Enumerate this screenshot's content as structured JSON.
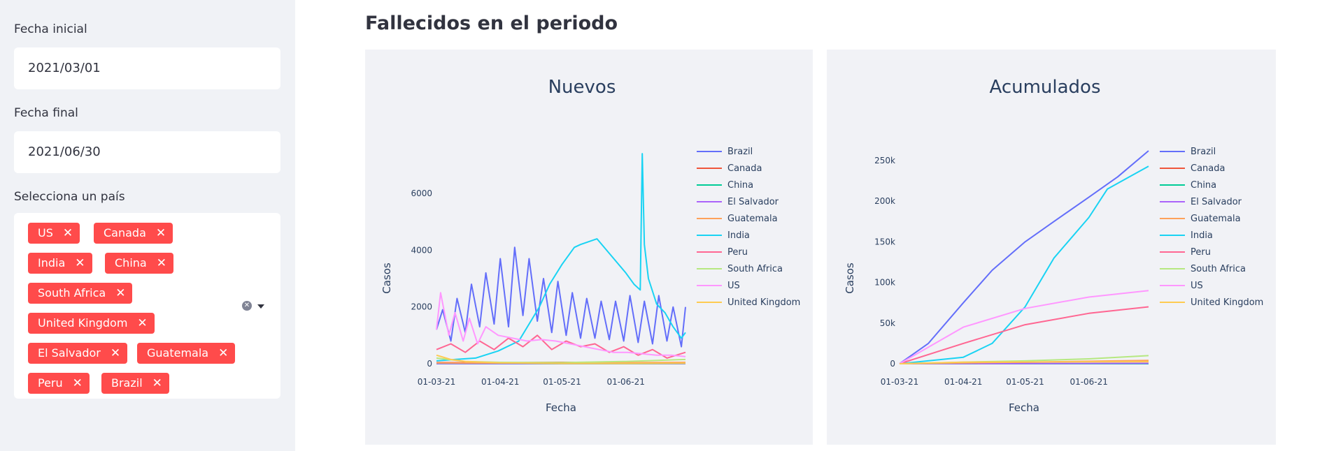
{
  "sidebar": {
    "start_label": "Fecha inicial",
    "start_value": "2021/03/01",
    "end_label": "Fecha final",
    "end_value": "2021/06/30",
    "country_label": "Selecciona un país",
    "selected": [
      "US",
      "Canada",
      "India",
      "China",
      "South Africa",
      "United Kingdom",
      "El Salvador",
      "Guatemala",
      "Peru",
      "Brazil"
    ],
    "tag_color": "#ff4b4b"
  },
  "main": {
    "title": "Fallecidos en el periodo"
  },
  "chart_data": [
    {
      "type": "line",
      "title": "Nuevos",
      "xlabel": "Fecha",
      "ylabel": "Casos",
      "xlim": [
        "2021-03-01",
        "2021-06-30"
      ],
      "ylim": [
        0,
        7500
      ],
      "yticks": [
        0,
        2000,
        4000,
        6000
      ],
      "ytick_labels": [
        "0",
        "2000",
        "4000",
        "6000"
      ],
      "xticks": [
        "2021-03-01",
        "2021-04-01",
        "2021-05-01",
        "2021-06-01"
      ],
      "xtick_labels": [
        "01-03-21",
        "01-04-21",
        "01-05-21",
        "01-06-21"
      ],
      "grid": false,
      "legend": "right",
      "series": [
        {
          "name": "Brazil",
          "color": "#636efa",
          "x": [
            "2021-03-01",
            "2021-03-04",
            "2021-03-08",
            "2021-03-11",
            "2021-03-15",
            "2021-03-18",
            "2021-03-22",
            "2021-03-25",
            "2021-03-29",
            "2021-04-01",
            "2021-04-05",
            "2021-04-08",
            "2021-04-12",
            "2021-04-15",
            "2021-04-19",
            "2021-04-22",
            "2021-04-26",
            "2021-04-29",
            "2021-05-03",
            "2021-05-06",
            "2021-05-10",
            "2021-05-13",
            "2021-05-17",
            "2021-05-20",
            "2021-05-24",
            "2021-05-27",
            "2021-05-31",
            "2021-06-03",
            "2021-06-07",
            "2021-06-10",
            "2021-06-14",
            "2021-06-17",
            "2021-06-21",
            "2021-06-24",
            "2021-06-28",
            "2021-06-30"
          ],
          "y": [
            1200,
            1900,
            800,
            2300,
            1100,
            2800,
            1300,
            3200,
            1400,
            3700,
            1300,
            4100,
            1700,
            3700,
            1500,
            3000,
            1100,
            2900,
            1000,
            2500,
            900,
            2300,
            900,
            2200,
            850,
            2200,
            800,
            2400,
            750,
            2200,
            700,
            2400,
            800,
            2000,
            600,
            2000
          ]
        },
        {
          "name": "Canada",
          "color": "#ef553b",
          "x": [
            "2021-03-01",
            "2021-04-01",
            "2021-05-01",
            "2021-06-01",
            "2021-06-30"
          ],
          "y": [
            40,
            35,
            50,
            35,
            20
          ]
        },
        {
          "name": "China",
          "color": "#00cc96",
          "x": [
            "2021-03-01",
            "2021-06-30"
          ],
          "y": [
            0,
            0
          ]
        },
        {
          "name": "El Salvador",
          "color": "#ab63fa",
          "x": [
            "2021-03-01",
            "2021-06-30"
          ],
          "y": [
            5,
            5
          ]
        },
        {
          "name": "Guatemala",
          "color": "#ffa15a",
          "x": [
            "2021-03-01",
            "2021-04-01",
            "2021-05-01",
            "2021-06-01",
            "2021-06-30"
          ],
          "y": [
            30,
            25,
            30,
            40,
            50
          ]
        },
        {
          "name": "India",
          "color": "#19d3f3",
          "x": [
            "2021-03-01",
            "2021-03-10",
            "2021-03-20",
            "2021-03-31",
            "2021-04-10",
            "2021-04-20",
            "2021-04-25",
            "2021-05-01",
            "2021-05-07",
            "2021-05-10",
            "2021-05-18",
            "2021-05-25",
            "2021-06-01",
            "2021-06-05",
            "2021-06-08",
            "2021-06-09",
            "2021-06-10",
            "2021-06-12",
            "2021-06-16",
            "2021-06-20",
            "2021-06-24",
            "2021-06-28",
            "2021-06-30"
          ],
          "y": [
            100,
            150,
            200,
            450,
            800,
            2000,
            2800,
            3500,
            4100,
            4200,
            4400,
            3800,
            3200,
            2800,
            2600,
            7400,
            4200,
            3000,
            2100,
            1800,
            1300,
            900,
            1100
          ]
        },
        {
          "name": "Peru",
          "color": "#ff6692",
          "x": [
            "2021-03-01",
            "2021-03-08",
            "2021-03-15",
            "2021-03-22",
            "2021-03-29",
            "2021-04-05",
            "2021-04-12",
            "2021-04-19",
            "2021-04-26",
            "2021-05-03",
            "2021-05-10",
            "2021-05-17",
            "2021-05-24",
            "2021-05-31",
            "2021-06-07",
            "2021-06-14",
            "2021-06-21",
            "2021-06-30"
          ],
          "y": [
            500,
            700,
            400,
            800,
            500,
            900,
            600,
            1000,
            500,
            800,
            600,
            700,
            400,
            600,
            300,
            500,
            200,
            400
          ]
        },
        {
          "name": "South Africa",
          "color": "#b6e880",
          "x": [
            "2021-03-01",
            "2021-03-15",
            "2021-04-01",
            "2021-05-01",
            "2021-06-01",
            "2021-06-30"
          ],
          "y": [
            200,
            80,
            50,
            40,
            80,
            150
          ]
        },
        {
          "name": "US",
          "color": "#ff97ff",
          "x": [
            "2021-03-01",
            "2021-03-03",
            "2021-03-07",
            "2021-03-10",
            "2021-03-14",
            "2021-03-17",
            "2021-03-21",
            "2021-03-25",
            "2021-03-31",
            "2021-04-07",
            "2021-04-14",
            "2021-04-21",
            "2021-04-28",
            "2021-05-05",
            "2021-05-12",
            "2021-05-19",
            "2021-05-26",
            "2021-06-02",
            "2021-06-09",
            "2021-06-16",
            "2021-06-23",
            "2021-06-30"
          ],
          "y": [
            1200,
            2500,
            1000,
            1800,
            800,
            1600,
            700,
            1300,
            1000,
            900,
            800,
            850,
            800,
            700,
            600,
            500,
            400,
            400,
            350,
            300,
            300,
            250
          ]
        },
        {
          "name": "United Kingdom",
          "color": "#fecb52",
          "x": [
            "2021-03-01",
            "2021-03-08",
            "2021-03-15",
            "2021-04-01",
            "2021-05-01",
            "2021-06-01",
            "2021-06-30"
          ],
          "y": [
            300,
            150,
            80,
            30,
            10,
            10,
            20
          ]
        }
      ]
    },
    {
      "type": "line",
      "title": "Acumulados",
      "xlabel": "Fecha",
      "ylabel": "Casos",
      "xlim": [
        "2021-03-01",
        "2021-06-30"
      ],
      "ylim": [
        0,
        262000
      ],
      "yticks": [
        0,
        50000,
        100000,
        150000,
        200000,
        250000
      ],
      "ytick_labels": [
        "0",
        "50k",
        "100k",
        "150k",
        "200k",
        "250k"
      ],
      "xticks": [
        "2021-03-01",
        "2021-04-01",
        "2021-05-01",
        "2021-06-01"
      ],
      "xtick_labels": [
        "01-03-21",
        "01-04-21",
        "01-05-21",
        "01-06-21"
      ],
      "grid": false,
      "legend": "right",
      "series": [
        {
          "name": "Brazil",
          "color": "#636efa",
          "x": [
            "2021-03-01",
            "2021-03-15",
            "2021-04-01",
            "2021-04-15",
            "2021-05-01",
            "2021-05-15",
            "2021-06-01",
            "2021-06-15",
            "2021-06-30"
          ],
          "y": [
            0,
            25000,
            75000,
            115000,
            150000,
            175000,
            205000,
            230000,
            262000
          ]
        },
        {
          "name": "Canada",
          "color": "#ef553b",
          "x": [
            "2021-03-01",
            "2021-06-30"
          ],
          "y": [
            0,
            3500
          ]
        },
        {
          "name": "China",
          "color": "#00cc96",
          "x": [
            "2021-03-01",
            "2021-06-30"
          ],
          "y": [
            0,
            0
          ]
        },
        {
          "name": "El Salvador",
          "color": "#ab63fa",
          "x": [
            "2021-03-01",
            "2021-06-30"
          ],
          "y": [
            0,
            500
          ]
        },
        {
          "name": "Guatemala",
          "color": "#ffa15a",
          "x": [
            "2021-03-01",
            "2021-06-30"
          ],
          "y": [
            0,
            4000
          ]
        },
        {
          "name": "India",
          "color": "#19d3f3",
          "x": [
            "2021-03-01",
            "2021-04-01",
            "2021-04-15",
            "2021-05-01",
            "2021-05-15",
            "2021-06-01",
            "2021-06-10",
            "2021-06-30"
          ],
          "y": [
            0,
            8000,
            25000,
            70000,
            130000,
            180000,
            215000,
            243000
          ]
        },
        {
          "name": "Peru",
          "color": "#ff6692",
          "x": [
            "2021-03-01",
            "2021-04-01",
            "2021-05-01",
            "2021-06-01",
            "2021-06-30"
          ],
          "y": [
            0,
            25000,
            48000,
            62000,
            70000
          ]
        },
        {
          "name": "South Africa",
          "color": "#b6e880",
          "x": [
            "2021-03-01",
            "2021-04-01",
            "2021-05-01",
            "2021-06-01",
            "2021-06-30"
          ],
          "y": [
            0,
            2000,
            3500,
            6000,
            10000
          ]
        },
        {
          "name": "US",
          "color": "#ff97ff",
          "x": [
            "2021-03-01",
            "2021-04-01",
            "2021-05-01",
            "2021-06-01",
            "2021-06-30"
          ],
          "y": [
            0,
            45000,
            68000,
            82000,
            90000
          ]
        },
        {
          "name": "United Kingdom",
          "color": "#fecb52",
          "x": [
            "2021-03-01",
            "2021-04-01",
            "2021-06-30"
          ],
          "y": [
            0,
            2000,
            2500
          ]
        }
      ]
    }
  ]
}
